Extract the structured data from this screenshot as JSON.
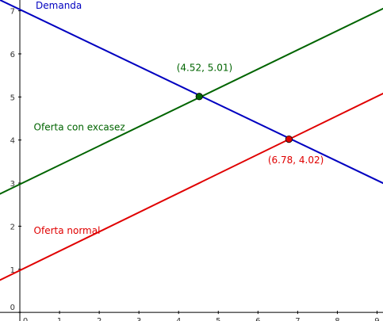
{
  "chart_data": {
    "type": "line",
    "title": "",
    "xlabel": "",
    "ylabel": "",
    "xlim": [
      -0.5,
      9.15
    ],
    "ylim": [
      -0.2,
      7.25
    ],
    "x_ticks": [
      0,
      1,
      2,
      3,
      4,
      5,
      6,
      7,
      8,
      9
    ],
    "y_ticks": [
      0,
      1,
      2,
      3,
      4,
      5,
      6,
      7
    ],
    "grid": false,
    "colors": {
      "axis": "#000000",
      "tick_text": "#333333"
    },
    "series": [
      {
        "name": "Demanda",
        "color": "#0000c0",
        "points": [
          [
            -0.5,
            7.25
          ],
          [
            9.15,
            3.0
          ]
        ],
        "label_at": [
          0.4,
          7.05
        ]
      },
      {
        "name": "Oferta con excasez",
        "color": "#006400",
        "points": [
          [
            -0.5,
            2.75
          ],
          [
            9.15,
            7.05
          ]
        ],
        "label_at": [
          0.35,
          4.22
        ]
      },
      {
        "name": "Oferta normal",
        "color": "#e00000",
        "points": [
          [
            -0.5,
            0.75
          ],
          [
            9.15,
            5.08
          ]
        ],
        "label_at": [
          0.35,
          1.82
        ]
      }
    ],
    "points": [
      {
        "label": "(4.52, 5.01)",
        "x": 4.52,
        "y": 5.01,
        "color": "#006400",
        "label_at": [
          3.95,
          5.6
        ]
      },
      {
        "label": "(6.78, 4.02)",
        "x": 6.78,
        "y": 4.02,
        "color": "#e00000",
        "label_at": [
          6.25,
          3.46
        ]
      }
    ]
  }
}
